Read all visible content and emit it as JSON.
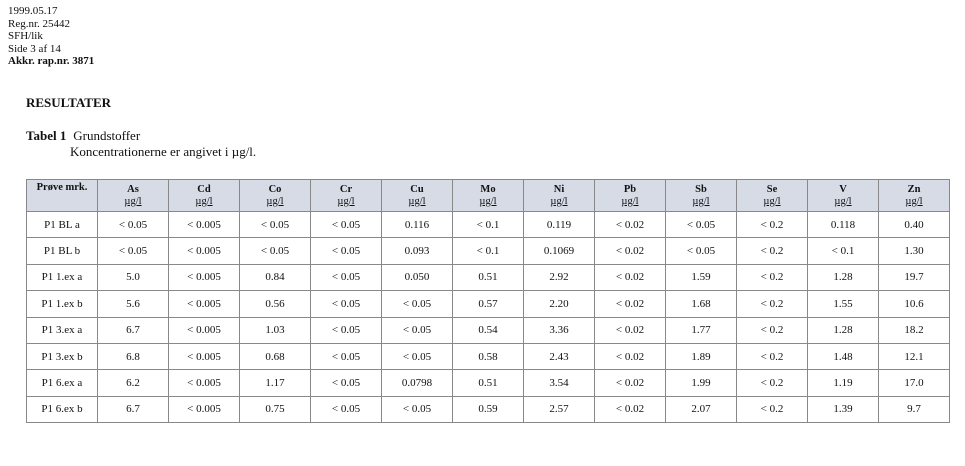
{
  "header": {
    "date": "1999.05.17",
    "reg": "Reg.nr. 25442",
    "initials": "SFH/lik",
    "page": "Side 3 af 14",
    "accreditation": "Akkr. rap.nr. 3871"
  },
  "section_title": "RESULTATER",
  "table_caption": {
    "label": "Tabel 1",
    "title": "Grundstoffer",
    "note": "Koncentrationerne er angivet i  µg/l."
  },
  "table": {
    "sample_header": "Prøve mrk.",
    "unit": "µg/l",
    "columns": [
      "As",
      "Cd",
      "Co",
      "Cr",
      "Cu",
      "Mo",
      "Ni",
      "Pb",
      "Sb",
      "Se",
      "V",
      "Zn"
    ],
    "rows": [
      {
        "sample": "P1 BL a",
        "values": [
          "< 0.05",
          "< 0.005",
          "< 0.05",
          "< 0.05",
          "0.116",
          "< 0.1",
          "0.119",
          "< 0.02",
          "< 0.05",
          "< 0.2",
          "0.118",
          "0.40"
        ]
      },
      {
        "sample": "P1 BL b",
        "values": [
          "< 0.05",
          "< 0.005",
          "< 0.05",
          "< 0.05",
          "0.093",
          "< 0.1",
          "0.1069",
          "< 0.02",
          "< 0.05",
          "< 0.2",
          "< 0.1",
          "1.30"
        ]
      },
      {
        "sample": "P1 1.ex a",
        "values": [
          "5.0",
          "< 0.005",
          "0.84",
          "< 0.05",
          "0.050",
          "0.51",
          "2.92",
          "< 0.02",
          "1.59",
          "< 0.2",
          "1.28",
          "19.7"
        ]
      },
      {
        "sample": "P1 1.ex b",
        "values": [
          "5.6",
          "< 0.005",
          "0.56",
          "< 0.05",
          "< 0.05",
          "0.57",
          "2.20",
          "< 0.02",
          "1.68",
          "< 0.2",
          "1.55",
          "10.6"
        ]
      },
      {
        "sample": "P1 3.ex a",
        "values": [
          "6.7",
          "< 0.005",
          "1.03",
          "< 0.05",
          "< 0.05",
          "0.54",
          "3.36",
          "< 0.02",
          "1.77",
          "< 0.2",
          "1.28",
          "18.2"
        ]
      },
      {
        "sample": "P1 3.ex b",
        "values": [
          "6.8",
          "< 0.005",
          "0.68",
          "< 0.05",
          "< 0.05",
          "0.58",
          "2.43",
          "< 0.02",
          "1.89",
          "< 0.2",
          "1.48",
          "12.1"
        ]
      },
      {
        "sample": "P1 6.ex a",
        "values": [
          "6.2",
          "< 0.005",
          "1.17",
          "< 0.05",
          "0.0798",
          "0.51",
          "3.54",
          "< 0.02",
          "1.99",
          "< 0.2",
          "1.19",
          "17.0"
        ]
      },
      {
        "sample": "P1 6.ex b",
        "values": [
          "6.7",
          "< 0.005",
          "0.75",
          "< 0.05",
          "< 0.05",
          "0.59",
          "2.57",
          "< 0.02",
          "2.07",
          "< 0.2",
          "1.39",
          "9.7"
        ]
      }
    ]
  }
}
